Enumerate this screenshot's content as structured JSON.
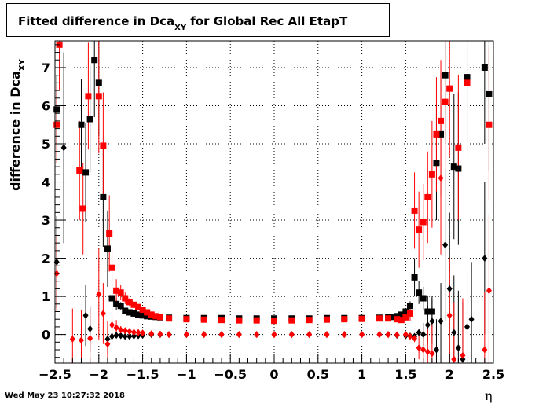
{
  "chart_data": {
    "type": "scatter",
    "title": "Fitted difference in Dca",
    "title_subscript": "XY",
    "title_suffix": " for Global Rec All EtapT",
    "ylabel": "difference in Dca",
    "ylabel_subscript": "XY",
    "xlabel": "η",
    "xlim": [
      -2.5,
      2.5
    ],
    "ylim": [
      -0.75,
      7.7
    ],
    "xticks": [
      -2.5,
      -2,
      -1.5,
      -1,
      -0.5,
      0,
      0.5,
      1,
      1.5,
      2,
      2.5
    ],
    "xtick_labels": [
      "−2.5",
      "−2",
      "−1.5",
      "−1",
      "−0.5",
      "0",
      "0.5",
      "1",
      "1.5",
      "2",
      "2.5"
    ],
    "yticks": [
      0,
      1,
      2,
      3,
      4,
      5,
      6,
      7
    ],
    "ytick_labels": [
      "0",
      "1",
      "2",
      "3",
      "4",
      "5",
      "6",
      "7"
    ],
    "grid": true,
    "series": [
      {
        "color": "#000000",
        "marker": "square",
        "points": [
          [
            -2.48,
            5.9,
            0.9
          ],
          [
            -2.2,
            5.5,
            1.2
          ],
          [
            -2.15,
            4.25,
            1.3
          ],
          [
            -2.1,
            5.65,
            1.4
          ],
          [
            -2.05,
            7.2,
            1.5
          ],
          [
            -2.0,
            6.6,
            1.4
          ],
          [
            -1.95,
            3.6,
            1.3
          ],
          [
            -1.9,
            2.25,
            1.0
          ],
          [
            -1.85,
            0.95,
            0.3
          ],
          [
            -1.8,
            0.8,
            0.15
          ],
          [
            -1.75,
            0.75,
            0.1
          ],
          [
            -1.7,
            0.62,
            0.08
          ],
          [
            -1.65,
            0.58,
            0.06
          ],
          [
            -1.6,
            0.55,
            0.05
          ],
          [
            -1.55,
            0.52,
            0.04
          ],
          [
            -1.5,
            0.5,
            0.03
          ],
          [
            -1.45,
            0.48,
            0.03
          ],
          [
            -1.4,
            0.47,
            0.02
          ],
          [
            -1.35,
            0.46,
            0.02
          ],
          [
            -1.3,
            0.45,
            0.02
          ],
          [
            -1.2,
            0.44,
            0.02
          ],
          [
            -1.0,
            0.43,
            0.02
          ],
          [
            -0.8,
            0.43,
            0.02
          ],
          [
            -0.6,
            0.43,
            0.02
          ],
          [
            -0.4,
            0.42,
            0.02
          ],
          [
            -0.2,
            0.42,
            0.02
          ],
          [
            0,
            0.42,
            0.02
          ],
          [
            0.2,
            0.42,
            0.02
          ],
          [
            0.4,
            0.42,
            0.02
          ],
          [
            0.6,
            0.43,
            0.02
          ],
          [
            0.8,
            0.43,
            0.02
          ],
          [
            1.0,
            0.43,
            0.02
          ],
          [
            1.2,
            0.44,
            0.02
          ],
          [
            1.3,
            0.45,
            0.02
          ],
          [
            1.35,
            0.46,
            0.02
          ],
          [
            1.4,
            0.48,
            0.03
          ],
          [
            1.45,
            0.52,
            0.05
          ],
          [
            1.5,
            0.6,
            0.08
          ],
          [
            1.55,
            0.75,
            0.12
          ],
          [
            1.6,
            1.5,
            0.5
          ],
          [
            1.65,
            1.1,
            0.3
          ],
          [
            1.7,
            0.95,
            0.3
          ],
          [
            1.75,
            0.6,
            0.4
          ],
          [
            1.8,
            0.6,
            0.4
          ],
          [
            1.85,
            4.5,
            1.5
          ],
          [
            1.9,
            5.25,
            1.6
          ],
          [
            1.95,
            6.8,
            1.8
          ],
          [
            2.05,
            4.4,
            1.9
          ],
          [
            2.1,
            4.35,
            2.0
          ],
          [
            2.2,
            6.75,
            2.0
          ],
          [
            2.4,
            7.0,
            2.0
          ],
          [
            2.45,
            6.3,
            2.0
          ]
        ]
      },
      {
        "color": "#000000",
        "marker": "diamond",
        "points": [
          [
            -2.48,
            1.9,
            1.2
          ],
          [
            -2.4,
            4.9,
            2.5
          ],
          [
            -2.15,
            0.5,
            0.8
          ],
          [
            -2.1,
            0.15,
            0.6
          ],
          [
            -1.9,
            -0.12,
            0.3
          ],
          [
            -1.85,
            -0.05,
            0.1
          ],
          [
            -1.8,
            -0.02,
            0.05
          ],
          [
            -1.75,
            -0.03,
            0.04
          ],
          [
            -1.7,
            -0.05,
            0.03
          ],
          [
            -1.65,
            -0.05,
            0.03
          ],
          [
            -1.6,
            -0.04,
            0.02
          ],
          [
            -1.55,
            -0.03,
            0.02
          ],
          [
            -1.5,
            -0.02,
            0.02
          ],
          [
            -1.4,
            0.0,
            0.02
          ],
          [
            -1.3,
            0.0,
            0.02
          ],
          [
            -1.2,
            0.0,
            0.02
          ],
          [
            -1.0,
            0.0,
            0.02
          ],
          [
            -0.8,
            0.0,
            0.02
          ],
          [
            -0.6,
            0.0,
            0.02
          ],
          [
            -0.4,
            0.0,
            0.02
          ],
          [
            -0.2,
            0.0,
            0.02
          ],
          [
            0,
            0.0,
            0.02
          ],
          [
            0.2,
            0.0,
            0.02
          ],
          [
            0.4,
            0.0,
            0.02
          ],
          [
            0.6,
            0.0,
            0.02
          ],
          [
            0.8,
            0.0,
            0.02
          ],
          [
            1.0,
            0.0,
            0.02
          ],
          [
            1.2,
            0.0,
            0.02
          ],
          [
            1.3,
            0.0,
            0.02
          ],
          [
            1.4,
            -0.02,
            0.02
          ],
          [
            1.5,
            -0.03,
            0.03
          ],
          [
            1.55,
            -0.04,
            0.03
          ],
          [
            1.6,
            -0.05,
            0.05
          ],
          [
            1.65,
            0.05,
            0.1
          ],
          [
            1.7,
            0.0,
            0.3
          ],
          [
            1.75,
            0.25,
            0.5
          ],
          [
            1.8,
            0.35,
            0.6
          ],
          [
            1.85,
            -0.4,
            0.8
          ],
          [
            1.9,
            0.35,
            1.0
          ],
          [
            1.95,
            2.35,
            2.0
          ],
          [
            2.0,
            1.2,
            2.0
          ],
          [
            2.05,
            0.05,
            1.5
          ],
          [
            2.1,
            -0.35,
            1.5
          ],
          [
            2.15,
            -0.65,
            1.5
          ],
          [
            2.2,
            0.2,
            1.5
          ],
          [
            2.25,
            0.4,
            1.5
          ],
          [
            2.4,
            2.0,
            2.0
          ]
        ]
      },
      {
        "color": "#ff0000",
        "marker": "square",
        "points": [
          [
            -2.48,
            5.5,
            1.0
          ],
          [
            -2.45,
            7.6,
            1.2
          ],
          [
            -2.22,
            4.3,
            1.3
          ],
          [
            -2.18,
            3.3,
            1.2
          ],
          [
            -2.12,
            6.25,
            1.4
          ],
          [
            -2.0,
            6.25,
            1.5
          ],
          [
            -1.95,
            4.95,
            1.4
          ],
          [
            -1.88,
            2.65,
            1.0
          ],
          [
            -1.85,
            1.75,
            0.5
          ],
          [
            -1.8,
            1.15,
            0.3
          ],
          [
            -1.75,
            1.1,
            0.2
          ],
          [
            -1.7,
            0.95,
            0.15
          ],
          [
            -1.65,
            0.85,
            0.1
          ],
          [
            -1.6,
            0.78,
            0.08
          ],
          [
            -1.55,
            0.72,
            0.06
          ],
          [
            -1.5,
            0.65,
            0.05
          ],
          [
            -1.45,
            0.58,
            0.04
          ],
          [
            -1.4,
            0.52,
            0.03
          ],
          [
            -1.35,
            0.48,
            0.03
          ],
          [
            -1.3,
            0.46,
            0.02
          ],
          [
            -1.2,
            0.42,
            0.02
          ],
          [
            -1.0,
            0.4,
            0.02
          ],
          [
            -0.8,
            0.39,
            0.02
          ],
          [
            -0.6,
            0.38,
            0.02
          ],
          [
            -0.4,
            0.37,
            0.02
          ],
          [
            -0.2,
            0.37,
            0.02
          ],
          [
            0,
            0.36,
            0.02
          ],
          [
            0.2,
            0.37,
            0.02
          ],
          [
            0.4,
            0.38,
            0.02
          ],
          [
            0.6,
            0.39,
            0.02
          ],
          [
            0.8,
            0.4,
            0.02
          ],
          [
            1.0,
            0.41,
            0.02
          ],
          [
            1.2,
            0.42,
            0.02
          ],
          [
            1.3,
            0.42,
            0.02
          ],
          [
            1.4,
            0.4,
            0.03
          ],
          [
            1.45,
            0.38,
            0.04
          ],
          [
            1.5,
            0.45,
            0.08
          ],
          [
            1.55,
            0.55,
            0.2
          ],
          [
            1.6,
            3.25,
            1.0
          ],
          [
            1.65,
            2.75,
            1.0
          ],
          [
            1.7,
            2.95,
            1.0
          ],
          [
            1.75,
            3.6,
            1.2
          ],
          [
            1.8,
            4.2,
            1.4
          ],
          [
            1.85,
            5.25,
            1.5
          ],
          [
            1.9,
            5.6,
            1.6
          ],
          [
            1.95,
            6.1,
            1.7
          ],
          [
            2.0,
            6.45,
            1.8
          ],
          [
            2.1,
            4.9,
            1.9
          ],
          [
            2.2,
            6.6,
            2.0
          ],
          [
            2.45,
            5.5,
            2.0
          ]
        ]
      },
      {
        "color": "#ff0000",
        "marker": "diamond",
        "points": [
          [
            -2.48,
            1.6,
            1.0
          ],
          [
            -2.3,
            -0.12,
            0.8
          ],
          [
            -2.2,
            -0.15,
            0.8
          ],
          [
            -2.1,
            -0.1,
            0.8
          ],
          [
            -2.0,
            1.05,
            1.2
          ],
          [
            -1.95,
            0.55,
            0.8
          ],
          [
            -1.9,
            -0.25,
            0.6
          ],
          [
            -1.85,
            0.25,
            0.3
          ],
          [
            -1.8,
            0.18,
            0.2
          ],
          [
            -1.75,
            0.12,
            0.1
          ],
          [
            -1.7,
            0.1,
            0.08
          ],
          [
            -1.65,
            0.08,
            0.06
          ],
          [
            -1.6,
            0.06,
            0.05
          ],
          [
            -1.55,
            0.05,
            0.04
          ],
          [
            -1.5,
            0.04,
            0.03
          ],
          [
            -1.4,
            0.02,
            0.02
          ],
          [
            -1.3,
            0.01,
            0.02
          ],
          [
            -1.2,
            0.0,
            0.02
          ],
          [
            -1.0,
            0.0,
            0.02
          ],
          [
            -0.8,
            0.0,
            0.02
          ],
          [
            -0.6,
            0.0,
            0.02
          ],
          [
            -0.4,
            0.0,
            0.02
          ],
          [
            -0.2,
            0.0,
            0.02
          ],
          [
            0,
            0.0,
            0.02
          ],
          [
            0.2,
            0.0,
            0.02
          ],
          [
            0.4,
            0.0,
            0.02
          ],
          [
            0.6,
            0.0,
            0.02
          ],
          [
            0.8,
            0.0,
            0.02
          ],
          [
            1.0,
            0.0,
            0.02
          ],
          [
            1.2,
            0.0,
            0.02
          ],
          [
            1.3,
            0.0,
            0.02
          ],
          [
            1.4,
            -0.01,
            0.02
          ],
          [
            1.5,
            0.0,
            0.03
          ],
          [
            1.55,
            -0.05,
            0.05
          ],
          [
            1.6,
            -0.1,
            0.1
          ],
          [
            1.65,
            -0.35,
            0.3
          ],
          [
            1.7,
            -0.4,
            0.5
          ],
          [
            1.75,
            -0.45,
            0.6
          ],
          [
            1.8,
            -0.5,
            0.8
          ],
          [
            1.9,
            4.1,
            2.0
          ],
          [
            2.0,
            0.5,
            1.5
          ],
          [
            2.05,
            -0.65,
            1.5
          ],
          [
            2.15,
            -0.55,
            1.5
          ],
          [
            2.4,
            -0.4,
            1.5
          ],
          [
            2.45,
            1.15,
            2.0
          ]
        ]
      }
    ]
  },
  "footer": {
    "timestamp": "Wed May 23 10:27:32 2018"
  }
}
